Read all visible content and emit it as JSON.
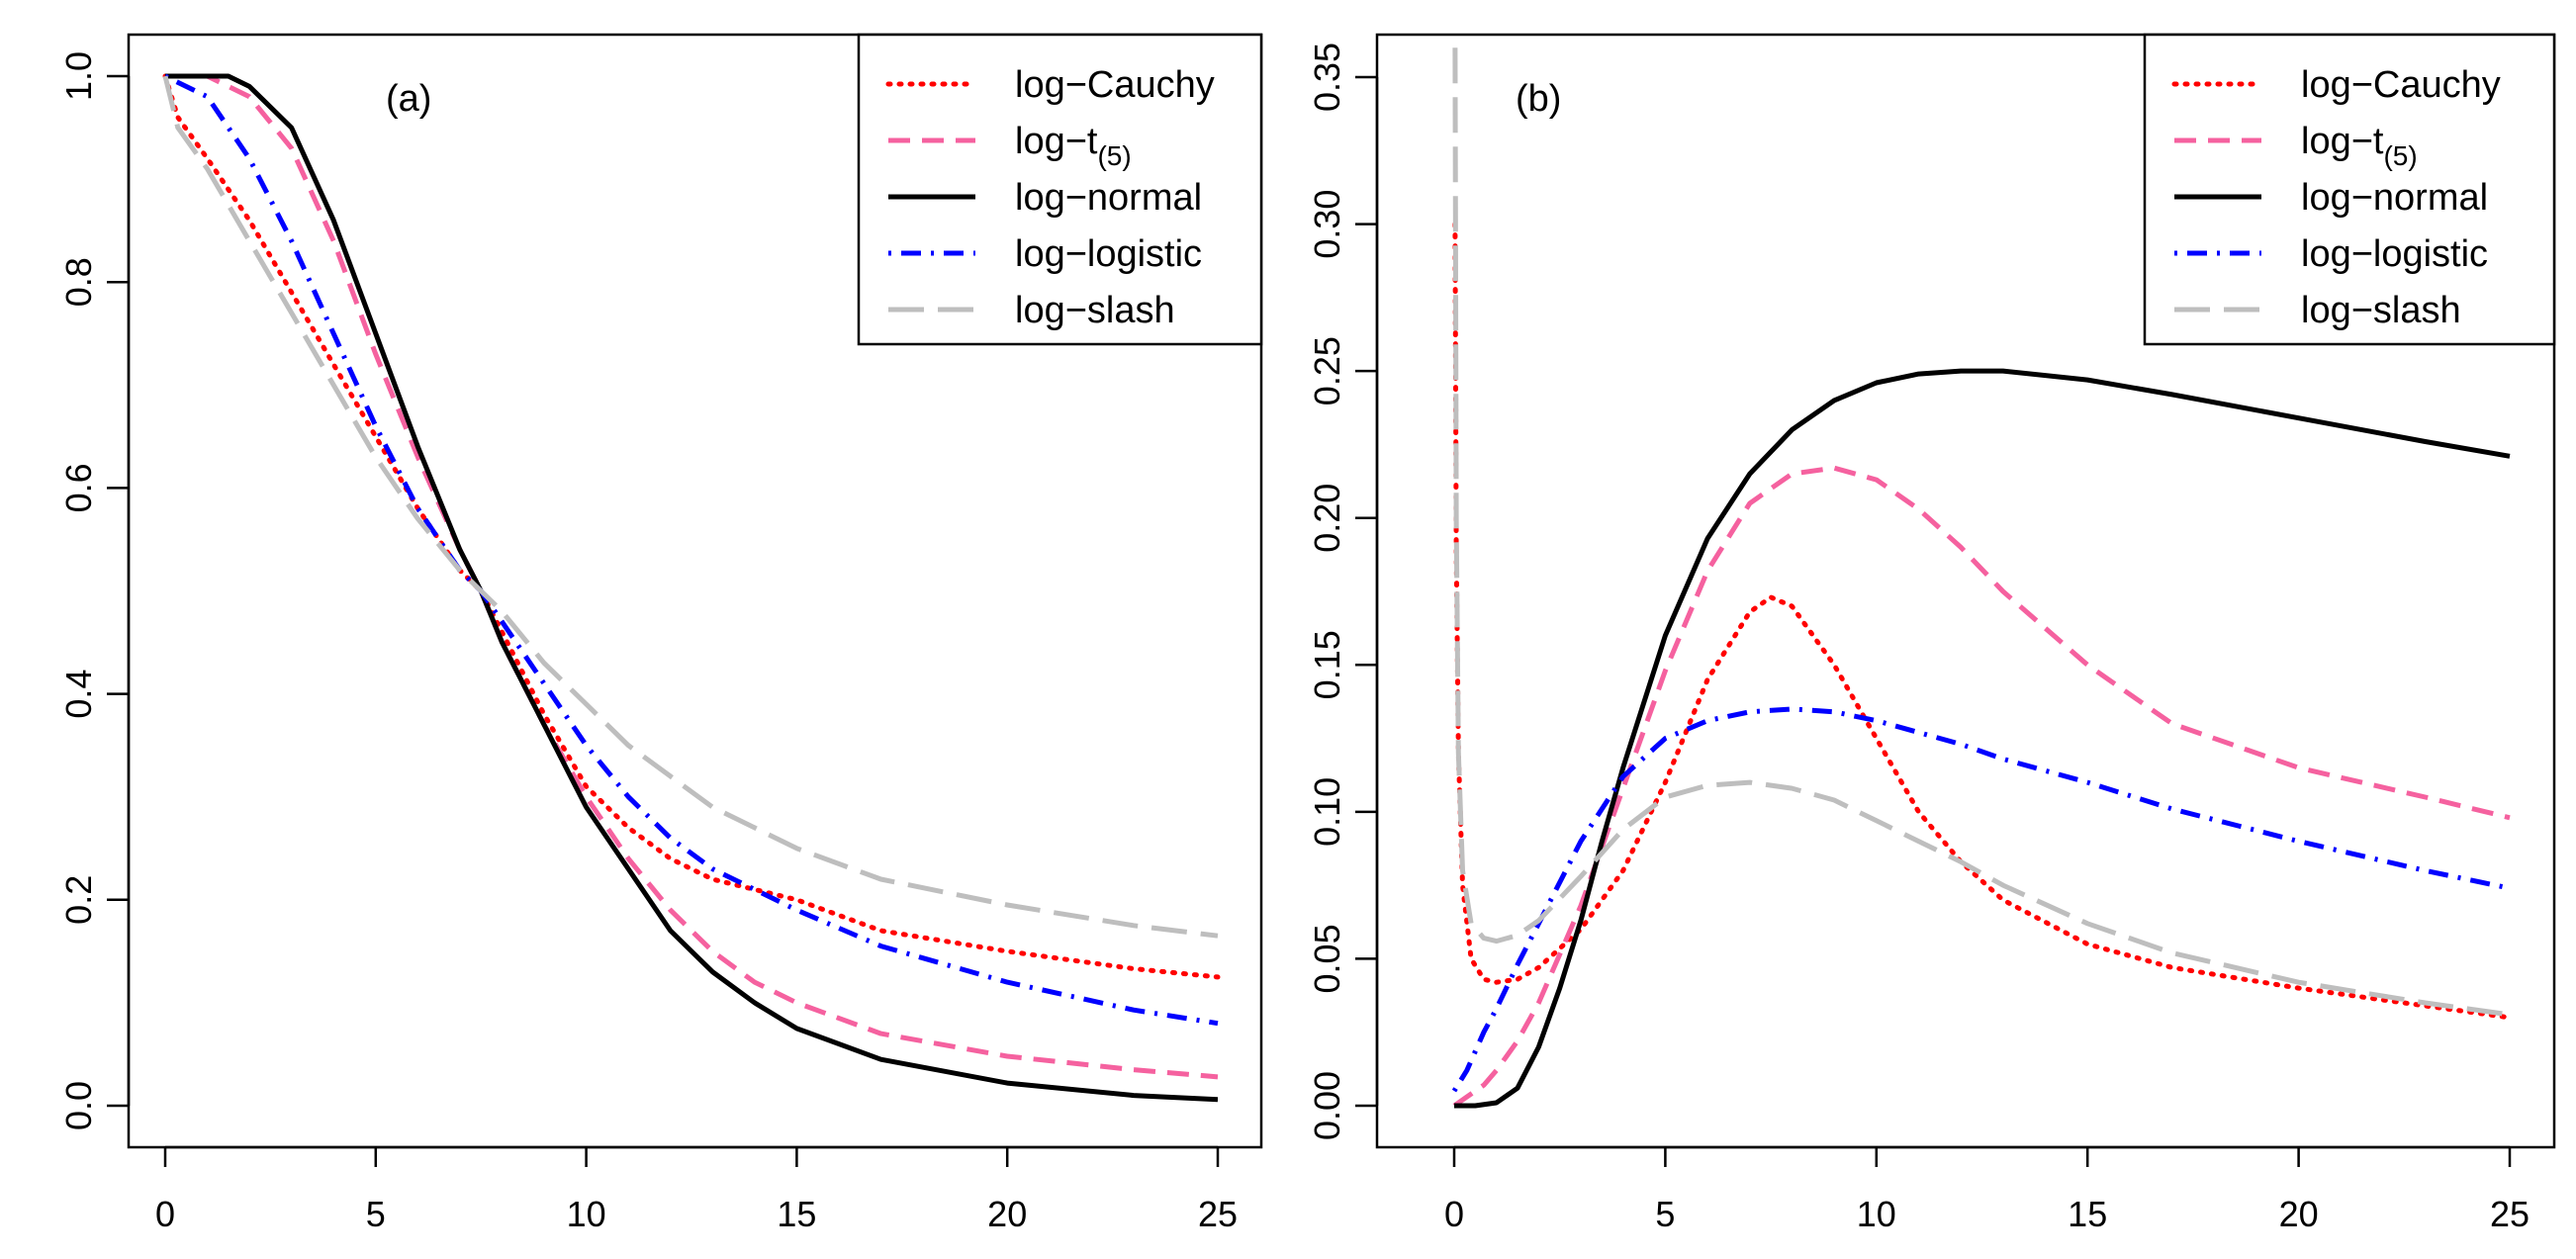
{
  "figure": {
    "panels": 2
  },
  "colors": {
    "log_cauchy": "#ff0000",
    "log_t5": "#f5619f",
    "log_normal": "#000000",
    "log_logistic": "#0000ff",
    "log_slash": "#bebebe"
  },
  "chart_data": [
    {
      "type": "line",
      "panel_label": "(a)",
      "title": "",
      "xlabel": "",
      "ylabel": "",
      "xlim": [
        0,
        25
      ],
      "ylim": [
        0.0,
        1.0
      ],
      "x_ticks": [
        "0",
        "5",
        "10",
        "15",
        "20",
        "25"
      ],
      "y_ticks": [
        "0.0",
        "0.2",
        "0.4",
        "0.6",
        "0.8",
        "1.0"
      ],
      "x_tick_values": [
        0,
        5,
        10,
        15,
        20,
        25
      ],
      "y_tick_values": [
        0.0,
        0.2,
        0.4,
        0.6,
        0.8,
        1.0
      ],
      "legend_position": "top-right",
      "grid": false,
      "series": [
        {
          "name": "log−Cauchy",
          "style": "dotted",
          "color": "#ff0000",
          "x": [
            0,
            0.3,
            1,
            2,
            3,
            4,
            5,
            6,
            7,
            7.5,
            8,
            9,
            10,
            11,
            12,
            13,
            14,
            15,
            17,
            20,
            23,
            25
          ],
          "y": [
            1.0,
            0.96,
            0.92,
            0.86,
            0.79,
            0.72,
            0.65,
            0.58,
            0.52,
            0.5,
            0.46,
            0.38,
            0.31,
            0.27,
            0.24,
            0.22,
            0.21,
            0.2,
            0.17,
            0.15,
            0.133,
            0.125
          ]
        },
        {
          "name": "log−t",
          "legend_sub": "(5)",
          "style": "dashed",
          "color": "#f5619f",
          "x": [
            0,
            1,
            2,
            3,
            4,
            5,
            6,
            7,
            7.5,
            8,
            9,
            10,
            11,
            12,
            13,
            14,
            15,
            17,
            20,
            23,
            25
          ],
          "y": [
            1.0,
            1.0,
            0.98,
            0.93,
            0.84,
            0.73,
            0.63,
            0.54,
            0.5,
            0.45,
            0.37,
            0.3,
            0.24,
            0.19,
            0.15,
            0.12,
            0.1,
            0.07,
            0.048,
            0.035,
            0.028
          ]
        },
        {
          "name": "log−normal",
          "style": "solid",
          "color": "#000000",
          "x": [
            0,
            1,
            1.5,
            2,
            3,
            4,
            5,
            6,
            7,
            7.5,
            8,
            9,
            10,
            11,
            12,
            13,
            14,
            15,
            17,
            20,
            23,
            25
          ],
          "y": [
            1.0,
            1.0,
            1.0,
            0.99,
            0.95,
            0.86,
            0.75,
            0.64,
            0.54,
            0.5,
            0.45,
            0.37,
            0.29,
            0.23,
            0.17,
            0.13,
            0.1,
            0.075,
            0.045,
            0.022,
            0.01,
            0.006
          ]
        },
        {
          "name": "log−logistic",
          "style": "dotdash",
          "color": "#0000ff",
          "x": [
            0,
            1,
            2,
            3,
            4,
            5,
            6,
            7,
            7.5,
            8,
            9,
            10,
            11,
            12,
            13,
            14,
            15,
            17,
            20,
            23,
            25
          ],
          "y": [
            1.0,
            0.98,
            0.92,
            0.84,
            0.75,
            0.66,
            0.58,
            0.52,
            0.5,
            0.47,
            0.41,
            0.35,
            0.3,
            0.26,
            0.23,
            0.21,
            0.19,
            0.155,
            0.12,
            0.093,
            0.08
          ]
        },
        {
          "name": "log−slash",
          "style": "longdash",
          "color": "#bebebe",
          "x": [
            0,
            0.3,
            1,
            2,
            3,
            4,
            5,
            6,
            7,
            7.5,
            8,
            9,
            10,
            11,
            12,
            13,
            14,
            15,
            17,
            20,
            23,
            25
          ],
          "y": [
            1.0,
            0.95,
            0.91,
            0.84,
            0.77,
            0.7,
            0.63,
            0.57,
            0.52,
            0.5,
            0.48,
            0.43,
            0.39,
            0.35,
            0.32,
            0.29,
            0.27,
            0.25,
            0.22,
            0.195,
            0.175,
            0.165
          ]
        }
      ]
    },
    {
      "type": "line",
      "panel_label": "(b)",
      "title": "",
      "xlabel": "",
      "ylabel": "",
      "xlim": [
        0,
        25
      ],
      "ylim": [
        0.0,
        0.36
      ],
      "x_ticks": [
        "0",
        "5",
        "10",
        "15",
        "20",
        "25"
      ],
      "y_ticks": [
        "0.00",
        "0.05",
        "0.10",
        "0.15",
        "0.20",
        "0.25",
        "0.30",
        "0.35"
      ],
      "x_tick_values": [
        0,
        5,
        10,
        15,
        20,
        25
      ],
      "y_tick_values": [
        0.0,
        0.05,
        0.1,
        0.15,
        0.2,
        0.25,
        0.3,
        0.35
      ],
      "legend_position": "top-right",
      "grid": false,
      "series": [
        {
          "name": "log−Cauchy",
          "style": "dotted",
          "color": "#ff0000",
          "x": [
            0.02,
            0.05,
            0.1,
            0.2,
            0.4,
            0.7,
            1,
            1.5,
            2,
            3,
            4,
            5,
            6,
            7,
            7.5,
            8,
            9,
            10,
            11,
            12,
            13,
            15,
            17,
            20,
            23,
            25
          ],
          "y": [
            0.3,
            0.19,
            0.12,
            0.075,
            0.05,
            0.043,
            0.042,
            0.043,
            0.047,
            0.06,
            0.08,
            0.11,
            0.145,
            0.168,
            0.173,
            0.17,
            0.15,
            0.125,
            0.1,
            0.083,
            0.07,
            0.055,
            0.047,
            0.04,
            0.034,
            0.03
          ]
        },
        {
          "name": "log−t",
          "legend_sub": "(5)",
          "style": "dashed",
          "color": "#f5619f",
          "x": [
            0,
            0.3,
            0.7,
            1,
            1.5,
            2,
            3,
            4,
            5,
            6,
            7,
            8,
            9,
            10,
            11,
            12,
            13,
            15,
            17,
            20,
            23,
            25
          ],
          "y": [
            0.0,
            0.003,
            0.007,
            0.012,
            0.022,
            0.035,
            0.068,
            0.108,
            0.148,
            0.182,
            0.205,
            0.215,
            0.217,
            0.213,
            0.203,
            0.19,
            0.175,
            0.15,
            0.13,
            0.115,
            0.105,
            0.098
          ]
        },
        {
          "name": "log−normal",
          "style": "solid",
          "color": "#000000",
          "x": [
            0,
            0.5,
            1,
            1.5,
            2,
            2.5,
            3,
            3.5,
            4,
            5,
            6,
            7,
            8,
            9,
            10,
            11,
            12,
            13,
            15,
            17,
            20,
            23,
            25
          ],
          "y": [
            0.0,
            0.0,
            0.001,
            0.006,
            0.02,
            0.04,
            0.063,
            0.09,
            0.115,
            0.16,
            0.193,
            0.215,
            0.23,
            0.24,
            0.246,
            0.249,
            0.25,
            0.25,
            0.247,
            0.242,
            0.234,
            0.226,
            0.221
          ]
        },
        {
          "name": "log−logistic",
          "style": "dotdash",
          "color": "#0000ff",
          "x": [
            0,
            0.3,
            0.7,
            1,
            1.5,
            2,
            3,
            4,
            5,
            6,
            7,
            8,
            9,
            10,
            11,
            12,
            13,
            15,
            17,
            20,
            23,
            25
          ],
          "y": [
            0.005,
            0.012,
            0.025,
            0.033,
            0.048,
            0.062,
            0.09,
            0.112,
            0.125,
            0.131,
            0.134,
            0.135,
            0.134,
            0.131,
            0.127,
            0.123,
            0.118,
            0.11,
            0.101,
            0.09,
            0.08,
            0.074
          ]
        },
        {
          "name": "log−slash",
          "style": "longdash",
          "color": "#bebebe",
          "x": [
            0.02,
            0.05,
            0.1,
            0.2,
            0.4,
            0.7,
            1,
            1.5,
            2,
            3,
            4,
            5,
            6,
            7,
            8,
            9,
            10,
            11,
            12,
            13,
            15,
            17,
            20,
            23,
            25
          ],
          "y": [
            0.36,
            0.2,
            0.12,
            0.08,
            0.062,
            0.057,
            0.056,
            0.058,
            0.063,
            0.078,
            0.094,
            0.105,
            0.109,
            0.11,
            0.108,
            0.104,
            0.097,
            0.09,
            0.083,
            0.075,
            0.062,
            0.052,
            0.042,
            0.035,
            0.031
          ]
        }
      ]
    }
  ]
}
